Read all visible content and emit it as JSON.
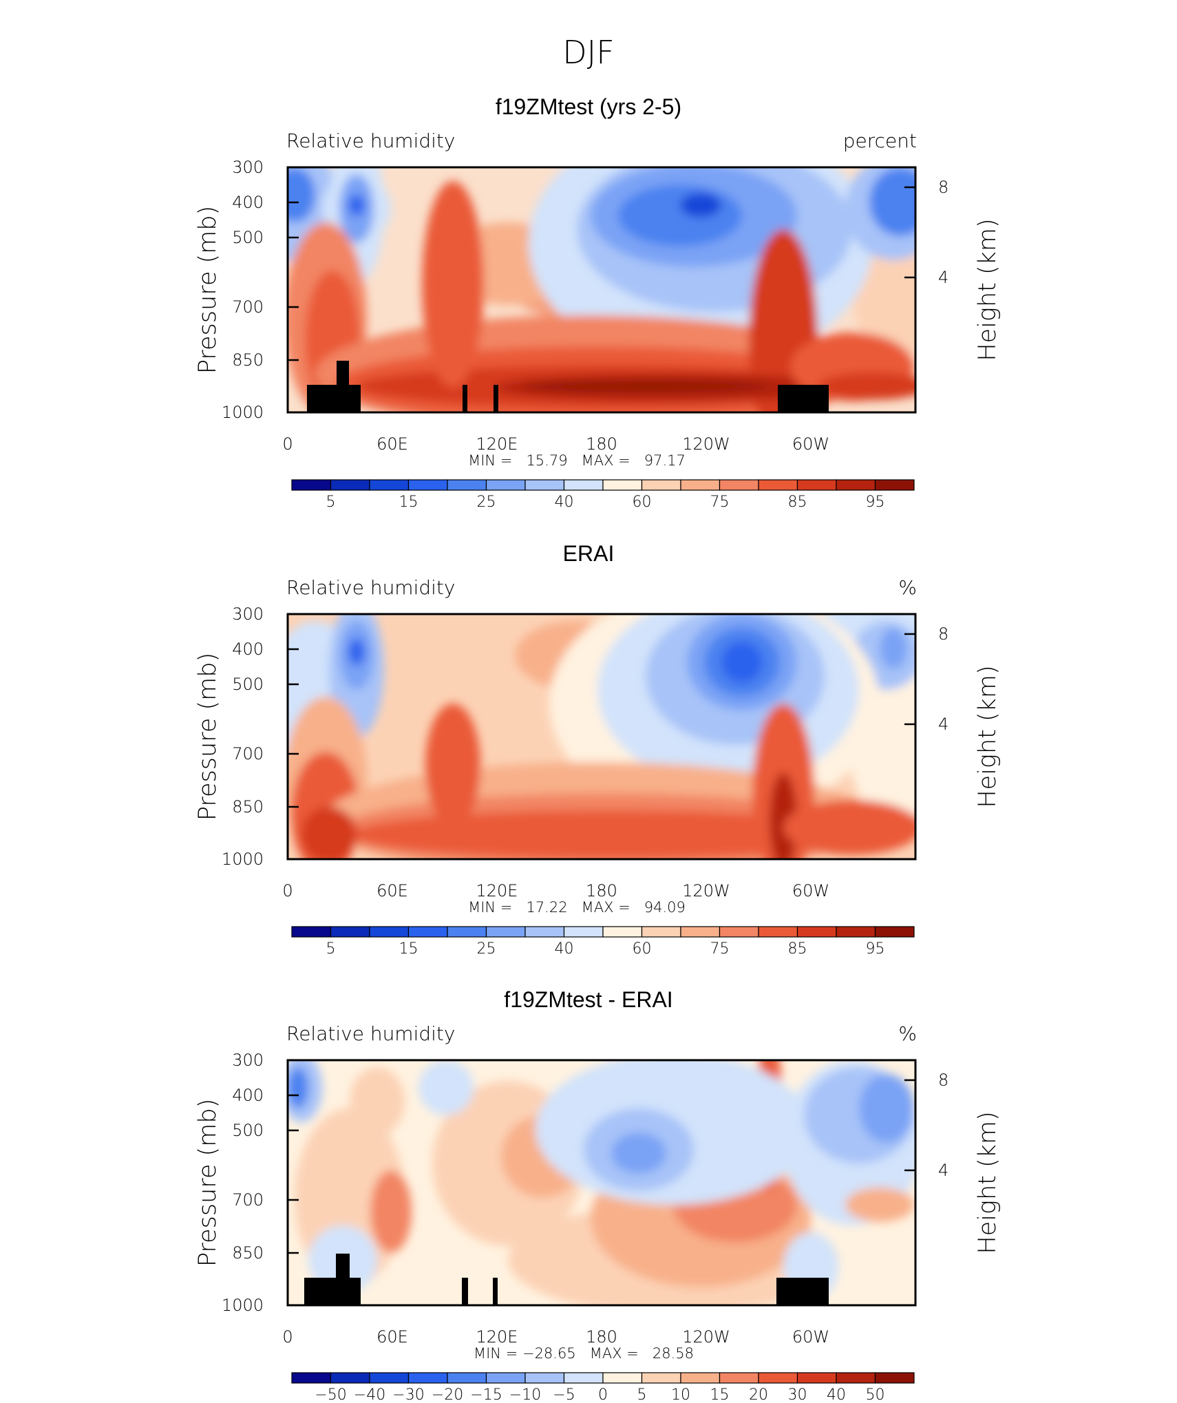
{
  "figure": {
    "title": "DJF"
  },
  "axis_common": {
    "pressure_label": "Pressure (mb)",
    "height_label": "Height (km)",
    "pressure_ticks": [
      "300",
      "400",
      "500",
      "700",
      "850",
      "1000"
    ],
    "height_ticks": [
      "8",
      "4"
    ],
    "lon_ticks": [
      "0",
      "60E",
      "120E",
      "180",
      "120W",
      "60W"
    ]
  },
  "colors": {
    "abs_scale": [
      "#08088c",
      "#0a2bb8",
      "#1446d8",
      "#2a62ee",
      "#4b82f0",
      "#7aa3f5",
      "#a7c3f8",
      "#d2e3fb",
      "#fff2e0",
      "#fcd2b5",
      "#f8b08a",
      "#f28563",
      "#ea5a37",
      "#d63a1e",
      "#b4230f",
      "#8c1205"
    ],
    "black": "#000000"
  },
  "chart_data": [
    {
      "type": "heatmap",
      "panel": "model",
      "title": "f19ZMtest (yrs 2-5)",
      "left_label": "Relative humidity",
      "right_label": "percent",
      "xlabel": "",
      "ylabel": "Pressure (mb)",
      "ylabel_right": "Height (km)",
      "xlim": [
        0,
        360
      ],
      "ylim": [
        1000,
        300
      ],
      "stats": "MIN =   15.79   MAX =   97.17",
      "min": 15.79,
      "max": 97.17,
      "colorbar_labels": [
        "5",
        "15",
        "25",
        "40",
        "60",
        "75",
        "85",
        "95"
      ],
      "grid": false
    },
    {
      "type": "heatmap",
      "panel": "obs",
      "title": "ERAI",
      "left_label": "Relative humidity",
      "right_label": "%",
      "xlabel": "",
      "ylabel": "Pressure (mb)",
      "ylabel_right": "Height (km)",
      "xlim": [
        0,
        360
      ],
      "ylim": [
        1000,
        300
      ],
      "stats": "MIN =   17.22   MAX =   94.09",
      "min": 17.22,
      "max": 94.09,
      "colorbar_labels": [
        "5",
        "15",
        "25",
        "40",
        "60",
        "75",
        "85",
        "95"
      ],
      "grid": false
    },
    {
      "type": "heatmap",
      "panel": "diff",
      "title": "f19ZMtest - ERAI",
      "left_label": "Relative humidity",
      "right_label": "%",
      "xlabel": "",
      "ylabel": "Pressure (mb)",
      "ylabel_right": "Height (km)",
      "xlim": [
        0,
        360
      ],
      "ylim": [
        1000,
        300
      ],
      "stats": "MIN = −28.65   MAX =   28.58",
      "min": -28.65,
      "max": 28.58,
      "colorbar_labels": [
        "−50",
        "−40",
        "−30",
        "−20",
        "−15",
        "−10",
        "−5",
        "0",
        "5",
        "10",
        "15",
        "20",
        "30",
        "40",
        "50"
      ],
      "grid": false
    }
  ]
}
